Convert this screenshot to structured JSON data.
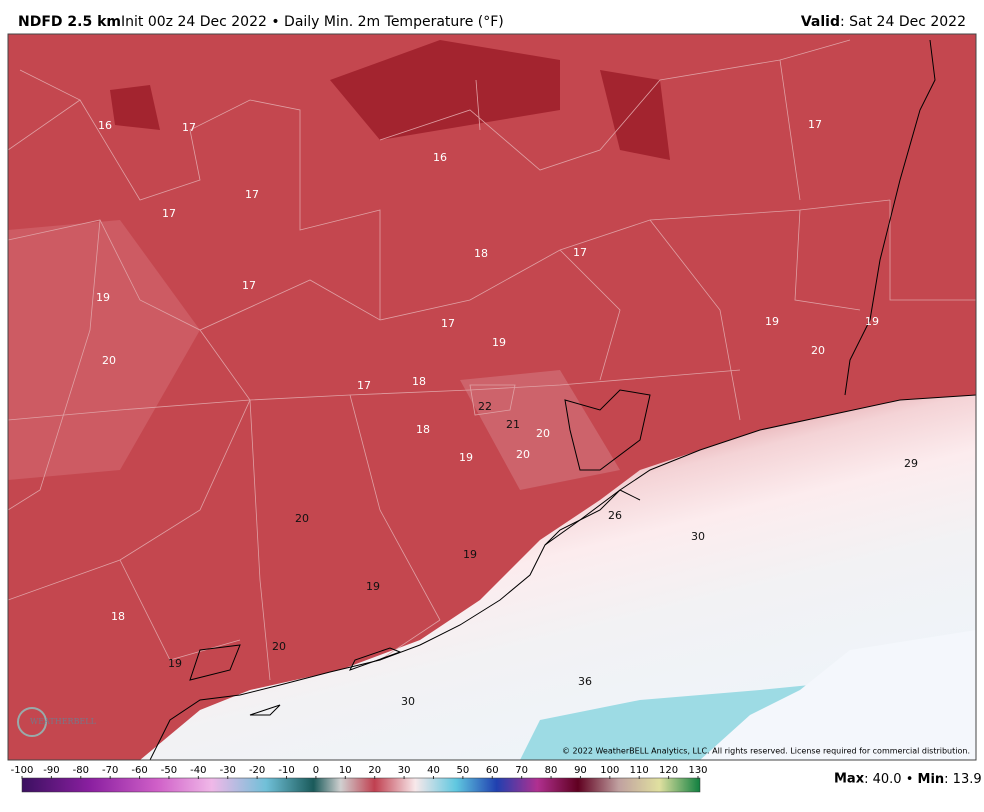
{
  "header": {
    "model": "NDFD 2.5 km",
    "description": "Init 00z 24 Dec 2022 • Daily Min. 2m Temperature (°F)",
    "valid_label": "Valid",
    "valid_date": ": Sat 24 Dec 2022"
  },
  "map_labels": [
    16,
    17,
    16,
    17,
    17,
    17,
    18,
    17,
    19,
    17,
    17,
    19,
    19,
    19,
    20,
    20,
    17,
    18,
    22,
    21,
    20,
    18,
    19,
    20,
    29,
    26,
    30,
    20,
    19,
    19,
    18,
    20,
    19,
    36,
    30
  ],
  "copyright": "© 2022 WeatherBELL Analytics, LLC. All rights reserved. License required for commercial distribution.",
  "colorbar_ticks": [
    -100,
    -90,
    -80,
    -70,
    -60,
    -50,
    -40,
    -30,
    -20,
    -10,
    0,
    10,
    20,
    30,
    40,
    50,
    60,
    70,
    80,
    90,
    100,
    110,
    120,
    130
  ],
  "stats": {
    "max_label": "Max",
    "max_value": ": 40.0",
    "separator": " • ",
    "min_label": "Min",
    "min_value": ": 13.9"
  },
  "logo": "WEATHERBELL"
}
